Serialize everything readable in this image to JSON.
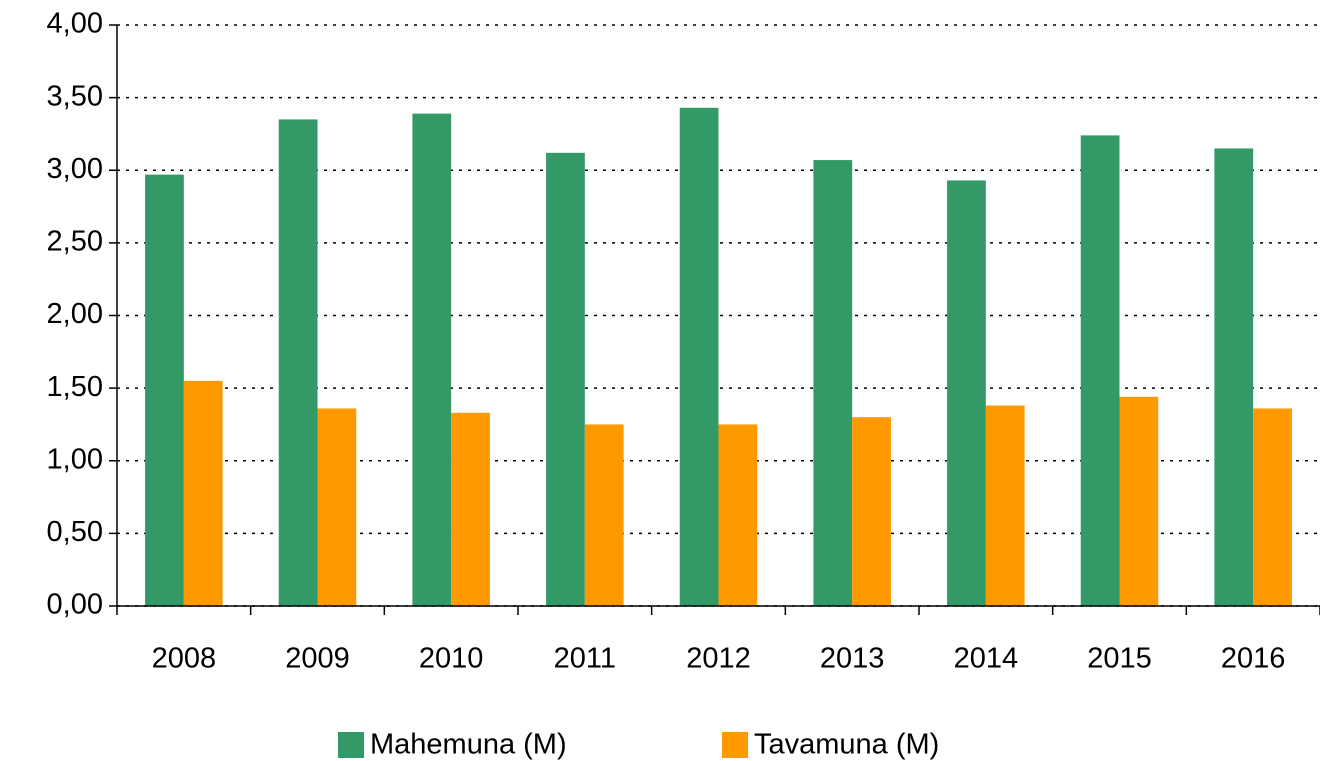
{
  "chart_data": {
    "type": "bar",
    "categories": [
      "2008",
      "2009",
      "2010",
      "2011",
      "2012",
      "2013",
      "2014",
      "2015",
      "2016"
    ],
    "series": [
      {
        "name": "Mahemuna (M)",
        "color": "#339966",
        "values": [
          2.97,
          3.35,
          3.39,
          3.12,
          3.43,
          3.07,
          2.93,
          3.24,
          3.15
        ]
      },
      {
        "name": "Tavamuna (M)",
        "color": "#ff9900",
        "values": [
          1.55,
          1.36,
          1.33,
          1.25,
          1.25,
          1.3,
          1.38,
          1.44,
          1.36
        ]
      }
    ],
    "ylim": [
      0,
      4
    ],
    "yticks": [
      {
        "value": 0,
        "label": "0,00"
      },
      {
        "value": 0.5,
        "label": "0,50"
      },
      {
        "value": 1,
        "label": "1,00"
      },
      {
        "value": 1.5,
        "label": "1,50"
      },
      {
        "value": 2,
        "label": "2,00"
      },
      {
        "value": 2.5,
        "label": "2,50"
      },
      {
        "value": 3,
        "label": "3,00"
      },
      {
        "value": 3.5,
        "label": "3,50"
      },
      {
        "value": 4,
        "label": "4,00"
      }
    ],
    "grid": true,
    "legend": "bottom"
  }
}
